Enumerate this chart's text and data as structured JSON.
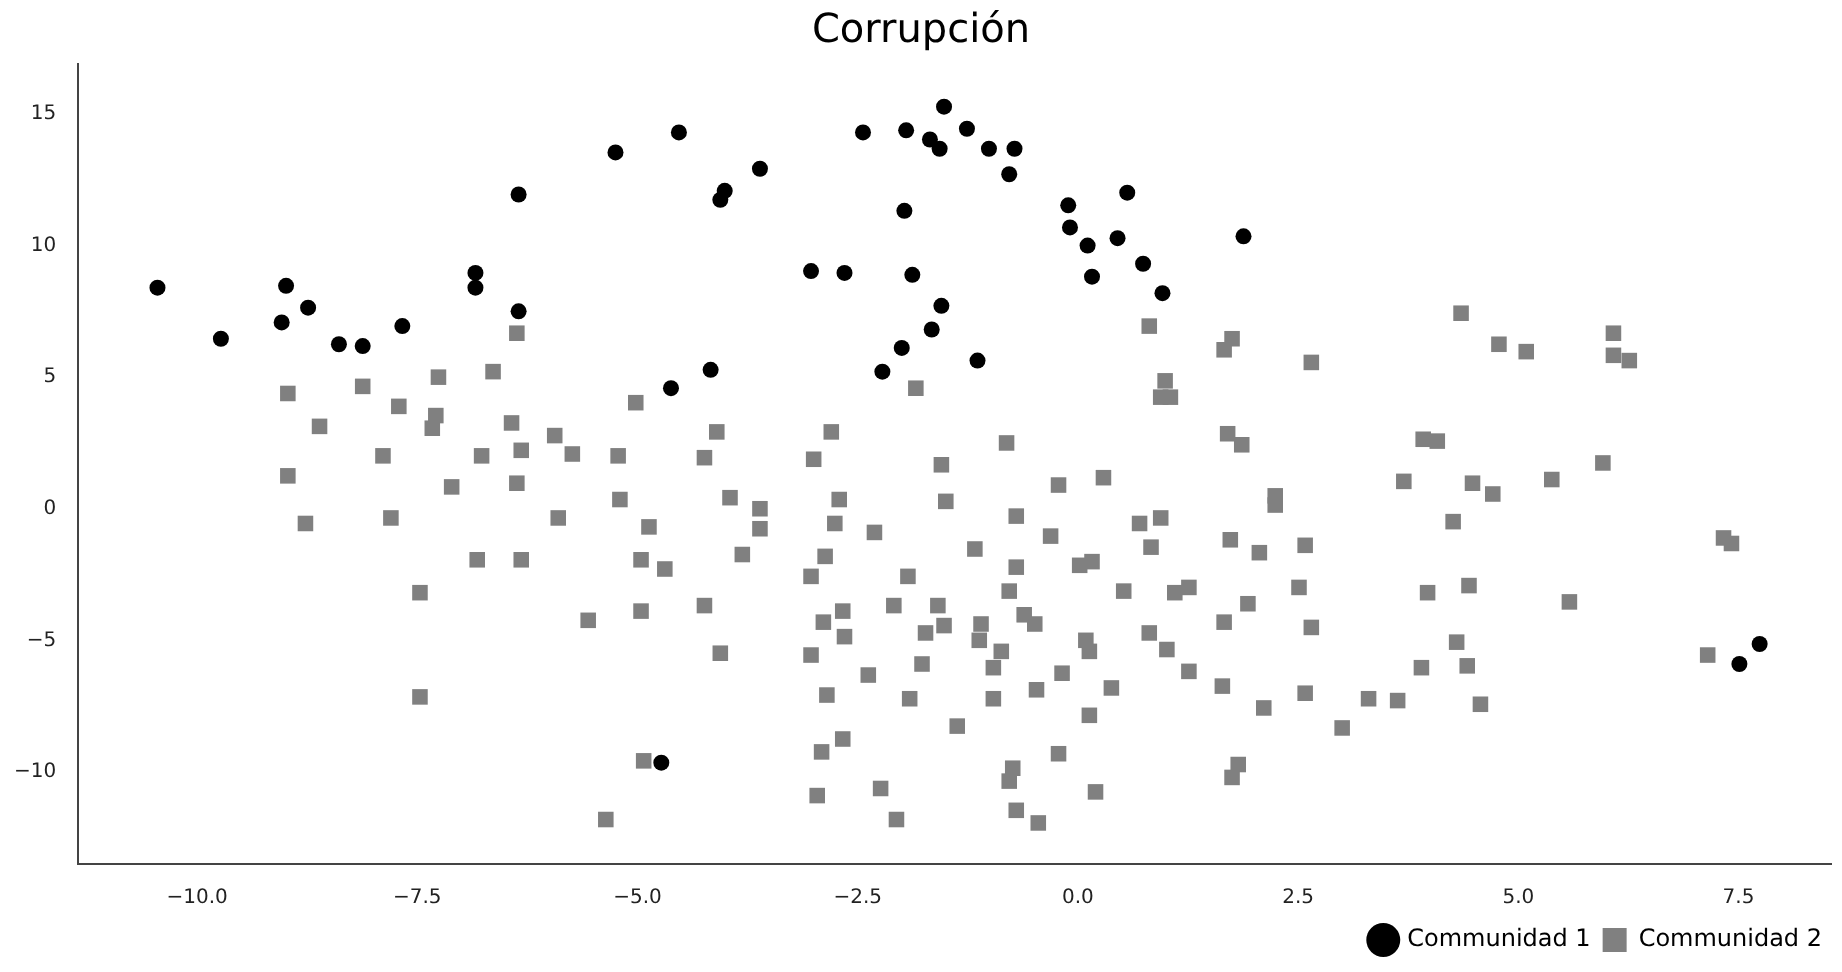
{
  "chart_data": {
    "type": "scatter",
    "title": "Corrupción",
    "legend": "bottom right",
    "grid": false,
    "xlim": [
      -11.35,
      8.55
    ],
    "ylim": [
      -13.5,
      16.9
    ],
    "xticks": [
      {
        "value": -10,
        "label": "−10.0"
      },
      {
        "value": -7.5,
        "label": "−7.5"
      },
      {
        "value": -5,
        "label": "−5.0"
      },
      {
        "value": -2.5,
        "label": "−2.5"
      },
      {
        "value": 0,
        "label": "0.0"
      },
      {
        "value": 2.5,
        "label": "2.5"
      },
      {
        "value": 5,
        "label": "5.0"
      },
      {
        "value": 7.5,
        "label": "7.5"
      }
    ],
    "yticks": [
      {
        "value": -10,
        "label": "−10"
      },
      {
        "value": -5,
        "label": "−5"
      },
      0,
      5,
      10,
      15
    ],
    "series": [
      {
        "name": "Communidad 1",
        "color": "#000000",
        "marker": "circle",
        "x": [
          -10.45,
          -9.73,
          -9.04,
          -8.99,
          -8.74,
          -8.39,
          -8.12,
          -7.67,
          -6.84,
          -6.84,
          -6.35,
          -6.35,
          -5.25,
          -4.62,
          -4.53,
          -4.17,
          -4.06,
          -4.01,
          -3.61,
          -3.03,
          -2.65,
          -2.44,
          -2.22,
          -2.0,
          -1.97,
          -1.95,
          -1.88,
          -1.68,
          -1.66,
          -1.57,
          -1.55,
          -1.52,
          -1.28,
          -1.26,
          -1.14,
          -1.01,
          -0.72,
          -0.78,
          -0.11,
          -0.09,
          0.11,
          0.16,
          0.45,
          0.56,
          0.74,
          0.96,
          1.88,
          -4.73,
          7.51,
          7.74
        ],
        "values": [
          8.4,
          6.46,
          7.08,
          8.47,
          7.64,
          6.25,
          6.18,
          6.94,
          8.96,
          8.4,
          7.5,
          11.94,
          13.54,
          4.58,
          14.3,
          5.28,
          11.74,
          12.08,
          12.92,
          9.03,
          8.96,
          14.3,
          5.21,
          6.11,
          11.32,
          14.38,
          8.89,
          14.03,
          6.81,
          13.68,
          7.71,
          15.28,
          null,
          14.44,
          5.63,
          13.68,
          13.68,
          12.71,
          11.53,
          10.69,
          10.0,
          8.82,
          10.28,
          12.01,
          9.31,
          8.19,
          10.35,
          -9.65,
          -5.9,
          -5.14
        ]
      },
      {
        "name": "Communidad 2",
        "color": "#808080",
        "marker": "square",
        "x": [
          -6.37,
          -6.64,
          -7.26,
          -8.12,
          -8.97,
          -5.02,
          -7.71,
          -7.29,
          -7.33,
          -8.61,
          -6.43,
          -5.94,
          -6.32,
          -7.89,
          -6.77,
          -5.74,
          -5.22,
          -8.97,
          -7.11,
          -6.37,
          -5.2,
          -8.77,
          -7.8,
          -5.9,
          -4.87,
          -6.82,
          -6.32,
          -4.96,
          -4.69,
          -7.47,
          -5.56,
          -4.96,
          -7.47,
          -4.93,
          -5.36,
          0.81,
          1.75,
          1.66,
          2.65,
          -1.84,
          0.99,
          0.94,
          1.05,
          -4.1,
          -2.8,
          -0.81,
          1.7,
          1.86,
          -4.24,
          -3.0,
          -1.55,
          -3.95,
          -3.61,
          -3.61,
          -2.71,
          -2.76,
          -2.31,
          -1.5,
          -0.22,
          0.29,
          -0.7,
          -0.31,
          0.7,
          0.94,
          0.83,
          1.73,
          -1.17,
          -0.7,
          0.02,
          0.16,
          -3.81,
          -2.87,
          -3.03,
          -1.93,
          -0.78,
          0.52,
          1.1,
          1.26,
          -4.24,
          -2.89,
          -2.67,
          -2.65,
          -2.09,
          -1.59,
          -1.52,
          -1.1,
          -1.12,
          -0.87,
          -1.73,
          -0.61,
          -0.49,
          0.09,
          0.13,
          0.81,
          1.01,
          1.66,
          1.93,
          -4.06,
          -3.03,
          -2.38,
          -1.77,
          -0.96,
          -0.18,
          1.26,
          -2.85,
          -1.91,
          -0.96,
          -0.47,
          0.38,
          1.64,
          0.13,
          -1.37,
          -2.91,
          -2.67,
          -0.22,
          -0.74,
          -0.78,
          1.82,
          1.75,
          -2.96,
          -2.24,
          0.2,
          -2.06,
          -0.7,
          -0.45,
          4.35,
          4.78,
          5.09,
          6.08,
          6.08,
          6.26,
          3.92,
          4.08,
          3.7,
          4.48,
          4.71,
          5.38,
          5.96,
          2.24,
          2.24,
          4.26,
          2.06,
          2.58,
          2.51,
          3.97,
          4.44,
          5.58,
          2.65,
          4.3,
          3.9,
          4.42,
          7.33,
          7.42,
          7.15,
          2.11,
          2.58,
          3.3,
          3.63,
          4.57,
          3.0
        ],
        "values": [
          6.67,
          5.21,
          5.0,
          4.65,
          4.38,
          4.03,
          3.89,
          3.54,
          3.06,
          3.13,
          3.26,
          2.78,
          2.22,
          2.01,
          2.01,
          2.08,
          2.01,
          1.25,
          0.83,
          0.97,
          0.35,
          -0.56,
          -0.35,
          -0.35,
          -0.69,
          -1.94,
          -1.94,
          -1.94,
          -2.29,
          -3.19,
          -4.24,
          -3.89,
          -7.15,
          -9.58,
          -11.81,
          6.94,
          6.46,
          6.04,
          5.56,
          4.58,
          4.86,
          4.24,
          4.24,
          2.92,
          2.92,
          2.5,
          2.85,
          2.43,
          1.94,
          1.88,
          1.67,
          0.42,
          0.0,
          -0.76,
          0.35,
          -0.56,
          -0.9,
          0.28,
          0.9,
          1.18,
          -0.28,
          -1.04,
          -0.56,
          -0.35,
          -1.46,
          -1.18,
          -1.53,
          -2.22,
          -2.15,
          -2.01,
          -1.74,
          -1.81,
          -2.57,
          -2.57,
          -3.13,
          -3.13,
          -3.19,
          -2.99,
          -3.68,
          -4.31,
          -3.89,
          -4.86,
          -3.68,
          -3.68,
          -4.44,
          -4.38,
          -5.0,
          -5.42,
          -4.72,
          -4.03,
          -4.38,
          -5.0,
          -5.42,
          -4.72,
          -5.35,
          -4.31,
          -3.61,
          -5.49,
          -5.56,
          -6.32,
          -5.9,
          -6.04,
          -6.25,
          -6.18,
          -7.08,
          -7.22,
          -7.22,
          -6.88,
          -6.81,
          -6.74,
          -7.85,
          -8.26,
          -9.24,
          -8.75,
          -9.31,
          -9.86,
          -10.35,
          -9.72,
          -10.21,
          -10.9,
          -10.63,
          -10.76,
          -11.81,
          -11.46,
          -11.94,
          7.43,
          6.25,
          5.97,
          6.67,
          5.83,
          5.63,
          2.64,
          2.57,
          1.04,
          0.97,
          0.56,
          1.11,
          1.74,
          0.49,
          0.14,
          -0.49,
          -1.67,
          -1.39,
          -2.99,
          -3.19,
          -2.92,
          -3.54,
          -4.51,
          -5.07,
          -6.04,
          -5.97,
          -1.11,
          -1.32,
          -5.56,
          -7.57,
          -7.01,
          -7.22,
          -7.29,
          -7.43,
          -8.33
        ]
      }
    ]
  }
}
